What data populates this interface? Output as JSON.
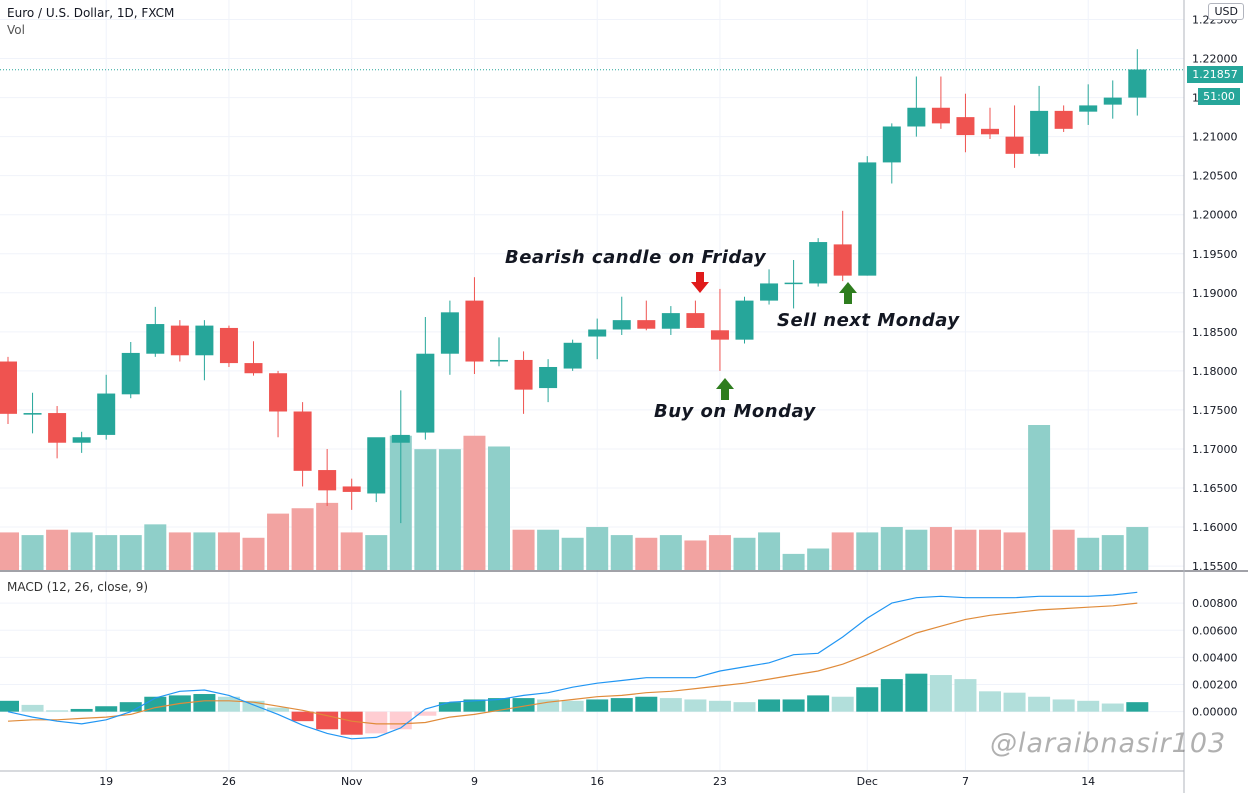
{
  "header": {
    "symbol": "Euro / U.S. Dollar, 1D, FXCM",
    "volume_label": "Vol",
    "currency": "USD",
    "last_price": "1.21857",
    "countdown": "51:00"
  },
  "annotations": {
    "bearish": "Bearish candle on Friday",
    "buy": "Buy on Monday",
    "sell": "Sell next Monday"
  },
  "watermark": "@laraibnasir103",
  "colors": {
    "up": "#26a69a",
    "down": "#ef5350",
    "up_vol": "#8fcfc9",
    "down_vol": "#f2a3a1",
    "macd": "#2196f3",
    "signal": "#e08b3a",
    "arrow_down": "#e01b1b",
    "arrow_up": "#2e7d1e"
  },
  "chart_data": [
    {
      "type": "candlestick",
      "title": "Euro / U.S. Dollar, 1D, FXCM",
      "x_ticks": [
        "19",
        "26",
        "Nov",
        "9",
        "16",
        "23",
        "Dec",
        "7",
        "14"
      ],
      "x_tick_index": [
        4,
        9,
        14,
        19,
        24,
        29,
        35,
        39,
        44
      ],
      "y_ticks": [
        "1.15500",
        "1.16000",
        "1.16500",
        "1.17000",
        "1.17500",
        "1.18000",
        "1.18500",
        "1.19000",
        "1.19500",
        "1.20000",
        "1.20500",
        "1.21000",
        "1.21500",
        "1.22000",
        "1.22500"
      ],
      "ylim": [
        1.1545,
        1.2275
      ],
      "candles": [
        {
          "o": 1.1812,
          "h": 1.1818,
          "l": 1.1732,
          "c": 1.1745
        },
        {
          "o": 1.1744,
          "h": 1.1772,
          "l": 1.172,
          "c": 1.1746
        },
        {
          "o": 1.1746,
          "h": 1.1755,
          "l": 1.1688,
          "c": 1.1708
        },
        {
          "o": 1.1708,
          "h": 1.1722,
          "l": 1.1695,
          "c": 1.1715
        },
        {
          "o": 1.1718,
          "h": 1.1795,
          "l": 1.1712,
          "c": 1.1771
        },
        {
          "o": 1.177,
          "h": 1.1837,
          "l": 1.1765,
          "c": 1.1823
        },
        {
          "o": 1.1822,
          "h": 1.1882,
          "l": 1.1818,
          "c": 1.186
        },
        {
          "o": 1.1858,
          "h": 1.1865,
          "l": 1.1812,
          "c": 1.182
        },
        {
          "o": 1.182,
          "h": 1.1865,
          "l": 1.1788,
          "c": 1.1858
        },
        {
          "o": 1.1855,
          "h": 1.1858,
          "l": 1.1805,
          "c": 1.181
        },
        {
          "o": 1.181,
          "h": 1.1838,
          "l": 1.1794,
          "c": 1.1797
        },
        {
          "o": 1.1797,
          "h": 1.18,
          "l": 1.1715,
          "c": 1.1748
        },
        {
          "o": 1.1748,
          "h": 1.176,
          "l": 1.1652,
          "c": 1.1672
        },
        {
          "o": 1.1673,
          "h": 1.17,
          "l": 1.1627,
          "c": 1.1647
        },
        {
          "o": 1.1652,
          "h": 1.1662,
          "l": 1.1622,
          "c": 1.1645
        },
        {
          "o": 1.1643,
          "h": 1.1712,
          "l": 1.1632,
          "c": 1.1715
        },
        {
          "o": 1.1708,
          "h": 1.1775,
          "l": 1.1605,
          "c": 1.1718
        },
        {
          "o": 1.1721,
          "h": 1.1869,
          "l": 1.1712,
          "c": 1.1822
        },
        {
          "o": 1.1822,
          "h": 1.189,
          "l": 1.1795,
          "c": 1.1875
        },
        {
          "o": 1.189,
          "h": 1.192,
          "l": 1.1796,
          "c": 1.1812
        },
        {
          "o": 1.1812,
          "h": 1.1843,
          "l": 1.1806,
          "c": 1.1814
        },
        {
          "o": 1.1814,
          "h": 1.1825,
          "l": 1.1745,
          "c": 1.1776
        },
        {
          "o": 1.1778,
          "h": 1.1815,
          "l": 1.176,
          "c": 1.1805
        },
        {
          "o": 1.1803,
          "h": 1.184,
          "l": 1.18,
          "c": 1.1836
        },
        {
          "o": 1.1844,
          "h": 1.1867,
          "l": 1.1815,
          "c": 1.1853
        },
        {
          "o": 1.1853,
          "h": 1.1895,
          "l": 1.1846,
          "c": 1.1865
        },
        {
          "o": 1.1865,
          "h": 1.189,
          "l": 1.1852,
          "c": 1.1854
        },
        {
          "o": 1.1854,
          "h": 1.1883,
          "l": 1.1846,
          "c": 1.1874
        },
        {
          "o": 1.1874,
          "h": 1.189,
          "l": 1.1855,
          "c": 1.1855
        },
        {
          "o": 1.1852,
          "h": 1.1905,
          "l": 1.18,
          "c": 1.184
        },
        {
          "o": 1.184,
          "h": 1.1895,
          "l": 1.1835,
          "c": 1.189
        },
        {
          "o": 1.189,
          "h": 1.193,
          "l": 1.1885,
          "c": 1.1912
        },
        {
          "o": 1.1913,
          "h": 1.1942,
          "l": 1.188,
          "c": 1.1913
        },
        {
          "o": 1.1912,
          "h": 1.197,
          "l": 1.1908,
          "c": 1.1965
        },
        {
          "o": 1.1962,
          "h": 1.2005,
          "l": 1.1915,
          "c": 1.1922
        },
        {
          "o": 1.1922,
          "h": 1.2075,
          "l": 1.1922,
          "c": 1.2067
        },
        {
          "o": 1.2067,
          "h": 1.2117,
          "l": 1.204,
          "c": 1.2113
        },
        {
          "o": 1.2113,
          "h": 1.2177,
          "l": 1.21,
          "c": 1.2137
        },
        {
          "o": 1.2137,
          "h": 1.2177,
          "l": 1.211,
          "c": 1.2117
        },
        {
          "o": 1.2125,
          "h": 1.2155,
          "l": 1.208,
          "c": 1.2102
        },
        {
          "o": 1.211,
          "h": 1.2137,
          "l": 1.2097,
          "c": 1.2103
        },
        {
          "o": 1.21,
          "h": 1.214,
          "l": 1.206,
          "c": 1.2078
        },
        {
          "o": 1.2078,
          "h": 1.2165,
          "l": 1.2075,
          "c": 1.2133
        },
        {
          "o": 1.2133,
          "h": 1.214,
          "l": 1.2106,
          "c": 1.211
        },
        {
          "o": 1.2132,
          "h": 1.2167,
          "l": 1.2115,
          "c": 1.214
        },
        {
          "o": 1.2141,
          "h": 1.2172,
          "l": 1.2123,
          "c": 1.215
        },
        {
          "o": 1.215,
          "h": 1.2212,
          "l": 1.2127,
          "c": 1.2186
        }
      ],
      "volume": [
        14,
        13,
        15,
        14,
        13,
        13,
        17,
        14,
        14,
        14,
        12,
        21,
        23,
        25,
        14,
        13,
        50,
        45,
        45,
        50,
        46,
        15,
        15,
        12,
        16,
        13,
        12,
        13,
        11,
        13,
        12,
        14,
        6,
        8,
        14,
        14,
        16,
        15,
        16,
        15,
        15,
        14,
        54,
        15,
        12,
        13,
        16
      ],
      "vol_max": 54
    },
    {
      "type": "macd",
      "title": "MACD (12, 26, close, 9)",
      "y_ticks": [
        "0.00000",
        "0.00200",
        "0.00400",
        "0.00600",
        "0.00800"
      ],
      "ylim": [
        -0.0043,
        0.01
      ],
      "histogram": [
        0.0008,
        0.0005,
        0.0001,
        0.0002,
        0.0004,
        0.0007,
        0.0011,
        0.0012,
        0.0013,
        0.0011,
        0.0008,
        0.0003,
        -0.0007,
        -0.0013,
        -0.0017,
        -0.0016,
        -0.0013,
        -0.0003,
        0.0007,
        0.0009,
        0.001,
        0.001,
        0.0009,
        0.0008,
        0.0009,
        0.001,
        0.0011,
        0.001,
        0.0009,
        0.0008,
        0.0007,
        0.0009,
        0.0009,
        0.0012,
        0.0011,
        0.0018,
        0.0024,
        0.0028,
        0.0027,
        0.0024,
        0.0015,
        0.0014,
        0.0011,
        0.0009,
        0.0008,
        0.0006,
        0.0007
      ],
      "macd": [
        0.0,
        -0.0004,
        -0.0007,
        -0.0009,
        -0.0006,
        0.0,
        0.001,
        0.0015,
        0.0016,
        0.0012,
        0.0005,
        -0.0002,
        -0.001,
        -0.0016,
        -0.002,
        -0.0019,
        -0.0012,
        0.0002,
        0.0007,
        0.0008,
        0.0009,
        0.0012,
        0.0014,
        0.0018,
        0.0021,
        0.0023,
        0.0025,
        0.0025,
        0.0025,
        0.003,
        0.0033,
        0.0036,
        0.0042,
        0.0043,
        0.0055,
        0.0069,
        0.008,
        0.0084,
        0.0085,
        0.0084,
        0.0084,
        0.0084,
        0.0085,
        0.0085,
        0.0085,
        0.0086,
        0.0088
      ],
      "signal": [
        -0.0007,
        -0.0006,
        -0.0006,
        -0.0005,
        -0.0004,
        -0.0002,
        0.0003,
        0.0006,
        0.0008,
        0.0008,
        0.0007,
        0.0004,
        0.0001,
        -0.0003,
        -0.0007,
        -0.0009,
        -0.0009,
        -0.0008,
        -0.0004,
        -0.0002,
        0.0001,
        0.0004,
        0.0007,
        0.0009,
        0.0011,
        0.0012,
        0.0014,
        0.0015,
        0.0017,
        0.0019,
        0.0021,
        0.0024,
        0.0027,
        0.003,
        0.0035,
        0.0042,
        0.005,
        0.0058,
        0.0063,
        0.0068,
        0.0071,
        0.0073,
        0.0075,
        0.0076,
        0.0077,
        0.0078,
        0.008
      ]
    }
  ]
}
